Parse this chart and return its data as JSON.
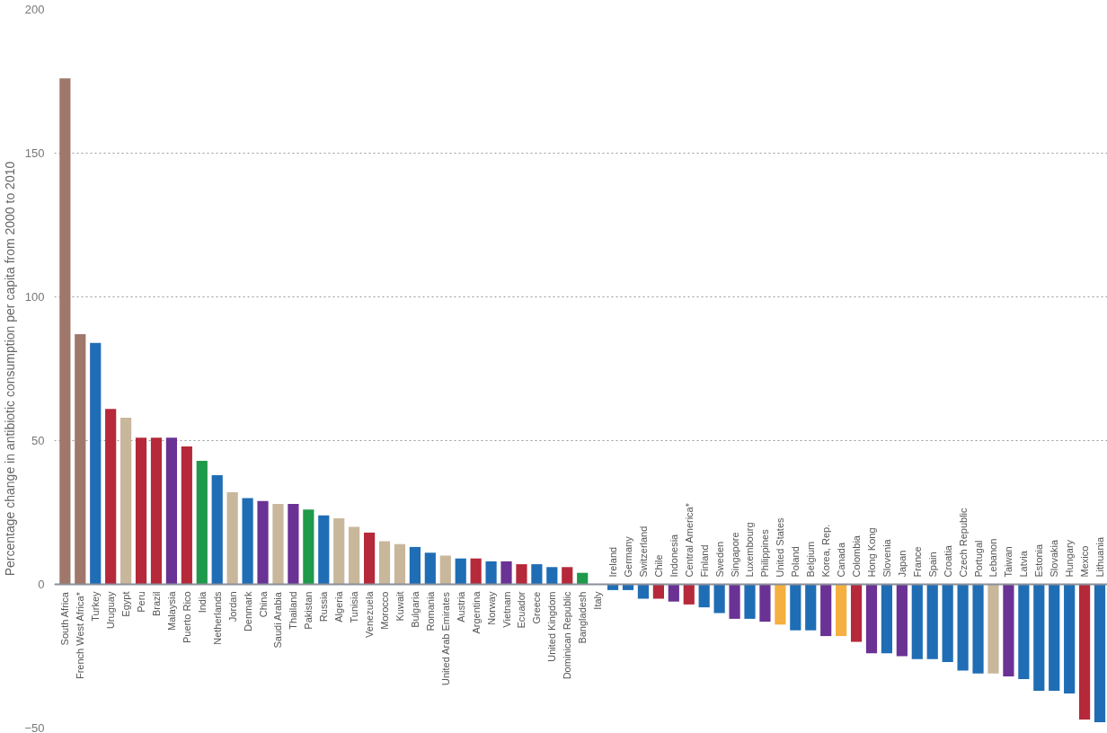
{
  "chart_data": {
    "type": "bar",
    "ylabel": "Percentage change in antibiotic consumption per capita from 2000 to 2010",
    "categories": [
      "South Africa",
      "French West Africa*",
      "Turkey",
      "Uruguay",
      "Egypt",
      "Peru",
      "Brazil",
      "Malaysia",
      "Puerto Rico",
      "India",
      "Netherlands",
      "Jordan",
      "Denmark",
      "China",
      "Saudi Arabia",
      "Thailand",
      "Pakistan",
      "Russia",
      "Algeria",
      "Tunisia",
      "Venezuela",
      "Morocco",
      "Kuwait",
      "Bulgaria",
      "Romania",
      "United Arab Emirates",
      "Austria",
      "Argentina",
      "Norway",
      "Vietnam",
      "Ecuador",
      "Greece",
      "United Kingdom",
      "Dominican Republic",
      "Bangladesh",
      "Italy",
      "Ireland",
      "Germany",
      "Switzerland",
      "Chile",
      "Indonesia",
      "Central America*",
      "Finland",
      "Sweden",
      "Singapore",
      "Luxembourg",
      "Philippines",
      "United States",
      "Poland",
      "Belgium",
      "Korea, Rep.",
      "Canada",
      "Colombia",
      "Hong Kong",
      "Slovenia",
      "Japan",
      "France",
      "Spain",
      "Croatia",
      "Czech Republic",
      "Portugal",
      "Lebanon",
      "Taiwan",
      "Latvia",
      "Estonia",
      "Slovakia",
      "Hungary",
      "Mexico",
      "Lithuania"
    ],
    "values": [
      176,
      87,
      84,
      61,
      58,
      51,
      51,
      51,
      48,
      43,
      38,
      32,
      30,
      29,
      28,
      28,
      26,
      24,
      23,
      20,
      18,
      15,
      14,
      13,
      11,
      10,
      9,
      9,
      8,
      8,
      7,
      7,
      6,
      6,
      4,
      0,
      -2,
      -2,
      -5,
      -5,
      -6,
      -7,
      -8,
      -10,
      -12,
      -12,
      -13,
      -14,
      -16,
      -16,
      -18,
      -18,
      -20,
      -24,
      -24,
      -25,
      -26,
      -26,
      -27,
      -30,
      -31,
      -31,
      -32,
      -33,
      -37,
      -37,
      -38,
      -47,
      -48
    ],
    "colors": [
      "#a0776b",
      "#a0776b",
      "#1f6db5",
      "#b5293a",
      "#c9b79c",
      "#b5293a",
      "#b5293a",
      "#6a3294",
      "#b5293a",
      "#1e9a4a",
      "#1f6db5",
      "#c9b79c",
      "#1f6db5",
      "#6a3294",
      "#c9b79c",
      "#6a3294",
      "#1e9a4a",
      "#1f6db5",
      "#c9b79c",
      "#c9b79c",
      "#b5293a",
      "#c9b79c",
      "#c9b79c",
      "#1f6db5",
      "#1f6db5",
      "#c9b79c",
      "#1f6db5",
      "#b5293a",
      "#1f6db5",
      "#6a3294",
      "#b5293a",
      "#1f6db5",
      "#1f6db5",
      "#b5293a",
      "#1e9a4a",
      "#1f6db5",
      "#1f6db5",
      "#1f6db5",
      "#1f6db5",
      "#b5293a",
      "#6a3294",
      "#b5293a",
      "#1f6db5",
      "#1f6db5",
      "#6a3294",
      "#1f6db5",
      "#6a3294",
      "#f5b041",
      "#1f6db5",
      "#1f6db5",
      "#6a3294",
      "#f5b041",
      "#b5293a",
      "#6a3294",
      "#1f6db5",
      "#6a3294",
      "#1f6db5",
      "#1f6db5",
      "#1f6db5",
      "#1f6db5",
      "#1f6db5",
      "#c9b79c",
      "#6a3294",
      "#1f6db5",
      "#1f6db5",
      "#1f6db5",
      "#1f6db5",
      "#b5293a",
      "#1f6db5"
    ],
    "ylim": [
      -50,
      200
    ],
    "yticks": [
      -50,
      0,
      50,
      100,
      150,
      200
    ],
    "grid": "y"
  }
}
